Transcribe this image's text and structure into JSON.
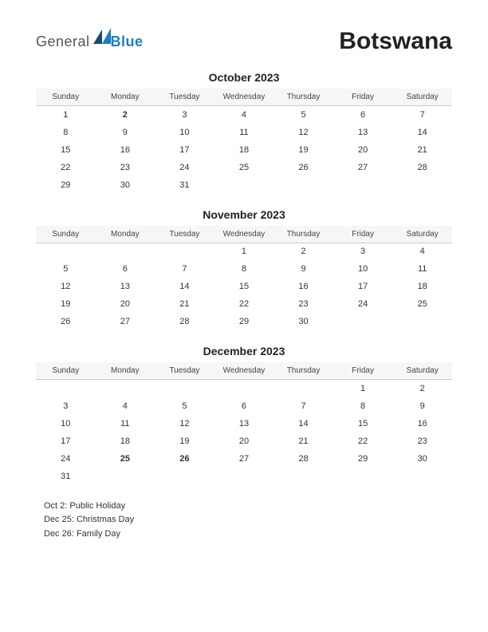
{
  "logo": {
    "general": "General",
    "blue": "Blue"
  },
  "country": "Botswana",
  "weekdays": [
    "Sunday",
    "Monday",
    "Tuesday",
    "Wednesday",
    "Thursday",
    "Friday",
    "Saturday"
  ],
  "colors": {
    "holiday": "#c00000",
    "logo_blue": "#1b7fc4",
    "logo_dark": "#1a4d72",
    "text": "#333333",
    "header_bg": "#f6f6f6",
    "border": "#cccccc"
  },
  "months": [
    {
      "title": "October 2023",
      "weeks": [
        [
          {
            "d": "1"
          },
          {
            "d": "2",
            "h": true
          },
          {
            "d": "3"
          },
          {
            "d": "4"
          },
          {
            "d": "5"
          },
          {
            "d": "6"
          },
          {
            "d": "7"
          }
        ],
        [
          {
            "d": "8"
          },
          {
            "d": "9"
          },
          {
            "d": "10"
          },
          {
            "d": "11"
          },
          {
            "d": "12"
          },
          {
            "d": "13"
          },
          {
            "d": "14"
          }
        ],
        [
          {
            "d": "15"
          },
          {
            "d": "16"
          },
          {
            "d": "17"
          },
          {
            "d": "18"
          },
          {
            "d": "19"
          },
          {
            "d": "20"
          },
          {
            "d": "21"
          }
        ],
        [
          {
            "d": "22"
          },
          {
            "d": "23"
          },
          {
            "d": "24"
          },
          {
            "d": "25"
          },
          {
            "d": "26"
          },
          {
            "d": "27"
          },
          {
            "d": "28"
          }
        ],
        [
          {
            "d": "29"
          },
          {
            "d": "30"
          },
          {
            "d": "31"
          },
          {
            "d": ""
          },
          {
            "d": ""
          },
          {
            "d": ""
          },
          {
            "d": ""
          }
        ]
      ]
    },
    {
      "title": "November 2023",
      "weeks": [
        [
          {
            "d": ""
          },
          {
            "d": ""
          },
          {
            "d": ""
          },
          {
            "d": "1"
          },
          {
            "d": "2"
          },
          {
            "d": "3"
          },
          {
            "d": "4"
          }
        ],
        [
          {
            "d": "5"
          },
          {
            "d": "6"
          },
          {
            "d": "7"
          },
          {
            "d": "8"
          },
          {
            "d": "9"
          },
          {
            "d": "10"
          },
          {
            "d": "11"
          }
        ],
        [
          {
            "d": "12"
          },
          {
            "d": "13"
          },
          {
            "d": "14"
          },
          {
            "d": "15"
          },
          {
            "d": "16"
          },
          {
            "d": "17"
          },
          {
            "d": "18"
          }
        ],
        [
          {
            "d": "19"
          },
          {
            "d": "20"
          },
          {
            "d": "21"
          },
          {
            "d": "22"
          },
          {
            "d": "23"
          },
          {
            "d": "24"
          },
          {
            "d": "25"
          }
        ],
        [
          {
            "d": "26"
          },
          {
            "d": "27"
          },
          {
            "d": "28"
          },
          {
            "d": "29"
          },
          {
            "d": "30"
          },
          {
            "d": ""
          },
          {
            "d": ""
          }
        ]
      ]
    },
    {
      "title": "December 2023",
      "weeks": [
        [
          {
            "d": ""
          },
          {
            "d": ""
          },
          {
            "d": ""
          },
          {
            "d": ""
          },
          {
            "d": ""
          },
          {
            "d": "1"
          },
          {
            "d": "2"
          }
        ],
        [
          {
            "d": "3"
          },
          {
            "d": "4"
          },
          {
            "d": "5"
          },
          {
            "d": "6"
          },
          {
            "d": "7"
          },
          {
            "d": "8"
          },
          {
            "d": "9"
          }
        ],
        [
          {
            "d": "10"
          },
          {
            "d": "11"
          },
          {
            "d": "12"
          },
          {
            "d": "13"
          },
          {
            "d": "14"
          },
          {
            "d": "15"
          },
          {
            "d": "16"
          }
        ],
        [
          {
            "d": "17"
          },
          {
            "d": "18"
          },
          {
            "d": "19"
          },
          {
            "d": "20"
          },
          {
            "d": "21"
          },
          {
            "d": "22"
          },
          {
            "d": "23"
          }
        ],
        [
          {
            "d": "24"
          },
          {
            "d": "25",
            "h": true
          },
          {
            "d": "26",
            "h": true
          },
          {
            "d": "27"
          },
          {
            "d": "28"
          },
          {
            "d": "29"
          },
          {
            "d": "30"
          }
        ],
        [
          {
            "d": "31"
          },
          {
            "d": ""
          },
          {
            "d": ""
          },
          {
            "d": ""
          },
          {
            "d": ""
          },
          {
            "d": ""
          },
          {
            "d": ""
          }
        ]
      ]
    }
  ],
  "holidays": [
    "Oct 2: Public Holiday",
    "Dec 25: Christmas Day",
    "Dec 26: Family Day"
  ]
}
